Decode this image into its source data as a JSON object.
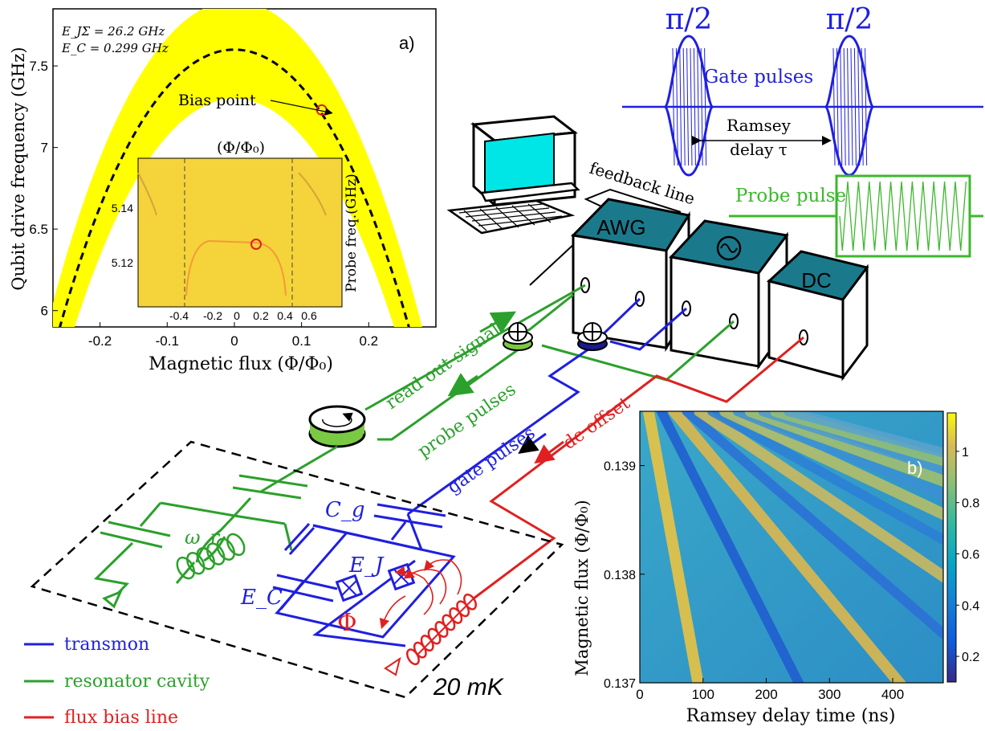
{
  "colors": {
    "transmon": "#1f1fe0",
    "resonator": "#2ca02c",
    "flux": "#e02020",
    "yellow": "#ffff00",
    "teal": "#1f7f8f"
  },
  "panel_a": {
    "label": "a)",
    "param1": "E_JΣ = 26.2 GHz",
    "param2": "E_C = 0.299 GHz",
    "annotation": "Bias point",
    "xlabel": "Magnetic flux (Φ/Φ₀)",
    "ylabel": "Qubit drive frequency (GHz)",
    "xticks": [
      "-0.2",
      "-0.1",
      "0",
      "0.1",
      "0.2"
    ],
    "yticks": [
      "6",
      "6.5",
      "7",
      "7.5"
    ],
    "inset": {
      "title": "(Φ/Φ₀)",
      "ylabel": "Probe freq.(GHz)",
      "yticks": [
        "5.12",
        "5.14"
      ],
      "xticks": [
        "-0.4",
        "-0.2",
        "0",
        "0.2",
        "0.4",
        "0.6"
      ]
    }
  },
  "chart_data": [
    {
      "type": "line",
      "title": "",
      "xlabel": "Magnetic flux (Φ/Φ₀)",
      "ylabel": "Qubit drive frequency (GHz)",
      "xlim": [
        -0.27,
        0.3
      ],
      "ylim": [
        5.9,
        7.85
      ],
      "series": [
        {
          "x": [
            -0.27,
            -0.2,
            -0.1,
            0,
            0.1,
            0.2,
            0.29
          ],
          "y": [
            6.12,
            6.8,
            7.41,
            7.6,
            7.41,
            6.8,
            5.95
          ]
        }
      ],
      "markers": [
        {
          "x": 0.13,
          "y": 7.23
        }
      ]
    },
    {
      "type": "heatmap",
      "xlabel": "Ramsey delay time (ns)",
      "ylabel": "Magnetic flux (Φ/Φ₀)",
      "xlim": [
        0,
        480
      ],
      "ylim": [
        0.137,
        0.1395
      ],
      "xticks": [
        "0",
        "100",
        "200",
        "300",
        "400"
      ],
      "yticks": [
        "0.137",
        "0.138",
        "0.139"
      ],
      "colorbar_ticks": [
        "0.2",
        "0.4",
        "0.6",
        "0.8",
        "1"
      ],
      "colorbar_range": [
        0.1,
        1.15
      ]
    }
  ],
  "panel_b": {
    "label": "b)"
  },
  "pulses": {
    "gate1": "π/2",
    "gate2": "π/2",
    "gate_label": "Gate pulses",
    "ramsey1": "Ramsey",
    "ramsey2": "delay τ",
    "probe_label": "Probe pulse",
    "feedback": "feedback line"
  },
  "instruments": {
    "awg": "AWG",
    "dc": "DC"
  },
  "signals": {
    "readout": "read out signal",
    "probe": "probe pulses",
    "gate": "gate pulses",
    "dc": "dc offset"
  },
  "circuit": {
    "wr": "ω_r",
    "cg": "C_g",
    "ec": "E_C",
    "ej": "E_J",
    "phi": "Φ",
    "temp": "20 mK"
  },
  "legend": [
    {
      "label": "transmon",
      "color": "#1f1fe0"
    },
    {
      "label": "resonator cavity",
      "color": "#2ca02c"
    },
    {
      "label": "flux bias line",
      "color": "#e02020"
    }
  ]
}
